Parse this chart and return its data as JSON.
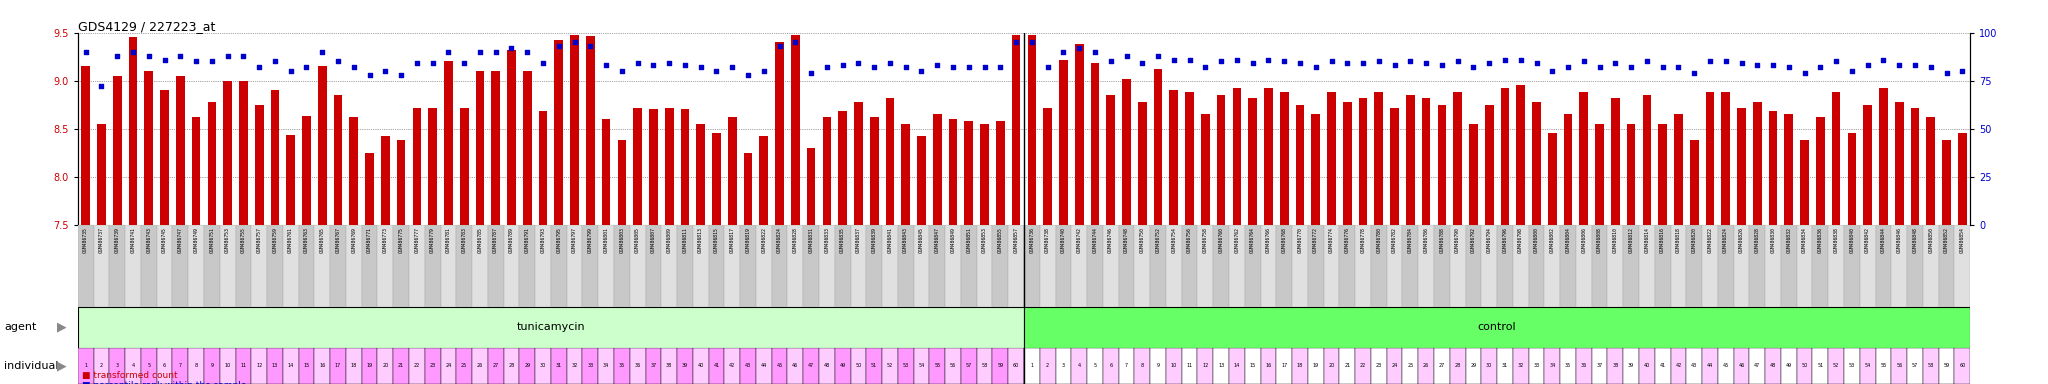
{
  "title": "GDS4129 / 227223_at",
  "ylim_left": [
    7.5,
    9.5
  ],
  "ylim_right": [
    0,
    100
  ],
  "yticks_left": [
    7.5,
    8.0,
    8.5,
    9.0,
    9.5
  ],
  "yticks_right": [
    0,
    25,
    50,
    75,
    100
  ],
  "bar_color": "#cc0000",
  "dot_color": "#0000cc",
  "tunicamycin_gsm": [
    "GSM486735",
    "GSM486737",
    "GSM486739",
    "GSM486741",
    "GSM486743",
    "GSM486745",
    "GSM486747",
    "GSM486749",
    "GSM486751",
    "GSM486753",
    "GSM486755",
    "GSM486757",
    "GSM486759",
    "GSM486761",
    "GSM486763",
    "GSM486765",
    "GSM486767",
    "GSM486769",
    "GSM486771",
    "GSM486773",
    "GSM486775",
    "GSM486777",
    "GSM486779",
    "GSM486781",
    "GSM486783",
    "GSM486785",
    "GSM486787",
    "GSM486789",
    "GSM486791",
    "GSM486793",
    "GSM486795",
    "GSM486797",
    "GSM486799",
    "GSM486801",
    "GSM486803",
    "GSM486805",
    "GSM486807",
    "GSM486809",
    "GSM486811",
    "GSM486813",
    "GSM486815",
    "GSM486817",
    "GSM486819",
    "GSM486822",
    "GSM486824",
    "GSM486828",
    "GSM486831",
    "GSM486833",
    "GSM486835",
    "GSM486837",
    "GSM486839",
    "GSM486841",
    "GSM486843",
    "GSM486845",
    "GSM486847",
    "GSM486849",
    "GSM486851",
    "GSM486853",
    "GSM486855",
    "GSM486857"
  ],
  "control_gsm": [
    "GSM486736",
    "GSM486738",
    "GSM486740",
    "GSM486742",
    "GSM486744",
    "GSM486746",
    "GSM486748",
    "GSM486750",
    "GSM486752",
    "GSM486754",
    "GSM486756",
    "GSM486758",
    "GSM486760",
    "GSM486762",
    "GSM486764",
    "GSM486766",
    "GSM486768",
    "GSM486770",
    "GSM486772",
    "GSM486774",
    "GSM486776",
    "GSM486778",
    "GSM486780",
    "GSM486782",
    "GSM486784",
    "GSM486786",
    "GSM486788",
    "GSM486790",
    "GSM486792",
    "GSM486794",
    "GSM486796",
    "GSM486798",
    "GSM486800",
    "GSM486802",
    "GSM486804",
    "GSM486806",
    "GSM486808",
    "GSM486810",
    "GSM486812",
    "GSM486814",
    "GSM486816",
    "GSM486818",
    "GSM486820",
    "GSM486822",
    "GSM486824",
    "GSM486826",
    "GSM486828",
    "GSM486830",
    "GSM486832",
    "GSM486834",
    "GSM486836",
    "GSM486838",
    "GSM486840",
    "GSM486842",
    "GSM486844",
    "GSM486846",
    "GSM486848",
    "GSM486850",
    "GSM486852",
    "GSM486854"
  ],
  "tunicamycin_values": [
    9.15,
    8.55,
    9.05,
    9.45,
    9.1,
    8.9,
    9.05,
    8.62,
    8.78,
    9.0,
    9.0,
    8.75,
    8.9,
    8.43,
    8.63,
    9.15,
    8.85,
    8.62,
    8.25,
    8.42,
    8.38,
    8.72,
    8.72,
    9.2,
    8.72,
    9.1,
    9.1,
    9.32,
    9.1,
    8.68,
    9.42,
    9.48,
    9.46,
    8.6,
    8.38,
    8.72,
    8.7,
    8.72,
    8.7,
    8.55,
    8.45,
    8.62,
    8.25,
    8.42,
    9.4,
    9.48,
    8.3,
    8.62,
    8.68,
    8.78,
    8.62,
    8.82,
    8.55,
    8.42,
    8.65,
    8.6,
    8.58,
    8.55,
    8.58,
    9.48
  ],
  "control_values": [
    9.48,
    8.72,
    9.22,
    9.38,
    9.18,
    8.85,
    9.02,
    8.78,
    9.12,
    8.9,
    8.88,
    8.65,
    8.85,
    8.92,
    8.82,
    8.92,
    8.88,
    8.75,
    8.65,
    8.88,
    8.78,
    8.82,
    8.88,
    8.72,
    8.85,
    8.82,
    8.75,
    8.88,
    8.55,
    8.75,
    8.92,
    8.95,
    8.78,
    8.45,
    8.65,
    8.88,
    8.55,
    8.82,
    8.55,
    8.85,
    8.55,
    8.65,
    8.38,
    8.88,
    8.88,
    8.72,
    8.78,
    8.68,
    8.65,
    8.38,
    8.62,
    8.88,
    8.45,
    8.75,
    8.92,
    8.78,
    8.72,
    8.62,
    8.38,
    8.45
  ],
  "tunicamycin_percentile": [
    90,
    72,
    88,
    90,
    88,
    86,
    88,
    85,
    85,
    88,
    88,
    82,
    85,
    80,
    82,
    90,
    85,
    82,
    78,
    80,
    78,
    84,
    84,
    90,
    84,
    90,
    90,
    92,
    90,
    84,
    93,
    95,
    93,
    83,
    80,
    84,
    83,
    84,
    83,
    82,
    80,
    82,
    78,
    80,
    93,
    95,
    79,
    82,
    83,
    84,
    82,
    84,
    82,
    80,
    83,
    82,
    82,
    82,
    82,
    95
  ],
  "control_percentile": [
    95,
    82,
    90,
    92,
    90,
    85,
    88,
    84,
    88,
    86,
    86,
    82,
    85,
    86,
    84,
    86,
    85,
    84,
    82,
    85,
    84,
    84,
    85,
    83,
    85,
    84,
    83,
    85,
    82,
    84,
    86,
    86,
    84,
    80,
    82,
    85,
    82,
    84,
    82,
    85,
    82,
    82,
    79,
    85,
    85,
    84,
    83,
    83,
    82,
    79,
    82,
    85,
    80,
    83,
    86,
    83,
    83,
    82,
    79,
    80
  ],
  "tunicamycin_individual": [
    1,
    2,
    3,
    4,
    5,
    6,
    7,
    8,
    9,
    10,
    11,
    12,
    13,
    14,
    15,
    16,
    17,
    18,
    19,
    20,
    21,
    22,
    23,
    24,
    25,
    26,
    27,
    28,
    29,
    30,
    31,
    32,
    33,
    34,
    35,
    36,
    37,
    38,
    39,
    40,
    41,
    42,
    43,
    44,
    45,
    46,
    47,
    48,
    49,
    50,
    51,
    52,
    53,
    54,
    55,
    56,
    57,
    58,
    59,
    60
  ],
  "control_individual": [
    1,
    2,
    3,
    4,
    5,
    6,
    7,
    8,
    9,
    10,
    11,
    12,
    13,
    14,
    15,
    16,
    17,
    18,
    19,
    20,
    21,
    22,
    23,
    24,
    25,
    26,
    27,
    28,
    29,
    30,
    31,
    32,
    33,
    34,
    35,
    36,
    37,
    38,
    39,
    40,
    41,
    42,
    43,
    44,
    45,
    46,
    47,
    48,
    49,
    50,
    51,
    52,
    53,
    54,
    55,
    56,
    57,
    58,
    59,
    60
  ],
  "agent_label": "agent",
  "individual_label": "individual",
  "tunicamycin_label": "tunicamycin",
  "control_label": "control",
  "legend_bar": "transformed count",
  "legend_dot": "percentile rank within the sample",
  "left_axis_color": "#cc0000",
  "right_axis_color": "#0000cc",
  "background_color": "#ffffff",
  "agent_tunicamycin_color": "#ccffcc",
  "agent_control_color": "#66ff66",
  "individual_pink_color": "#ff99ff",
  "individual_light_pink_color": "#ffccff",
  "individual_white_color": "#ffffff",
  "gsm_bg_even": "#c8c8c8",
  "gsm_bg_odd": "#e0e0e0"
}
